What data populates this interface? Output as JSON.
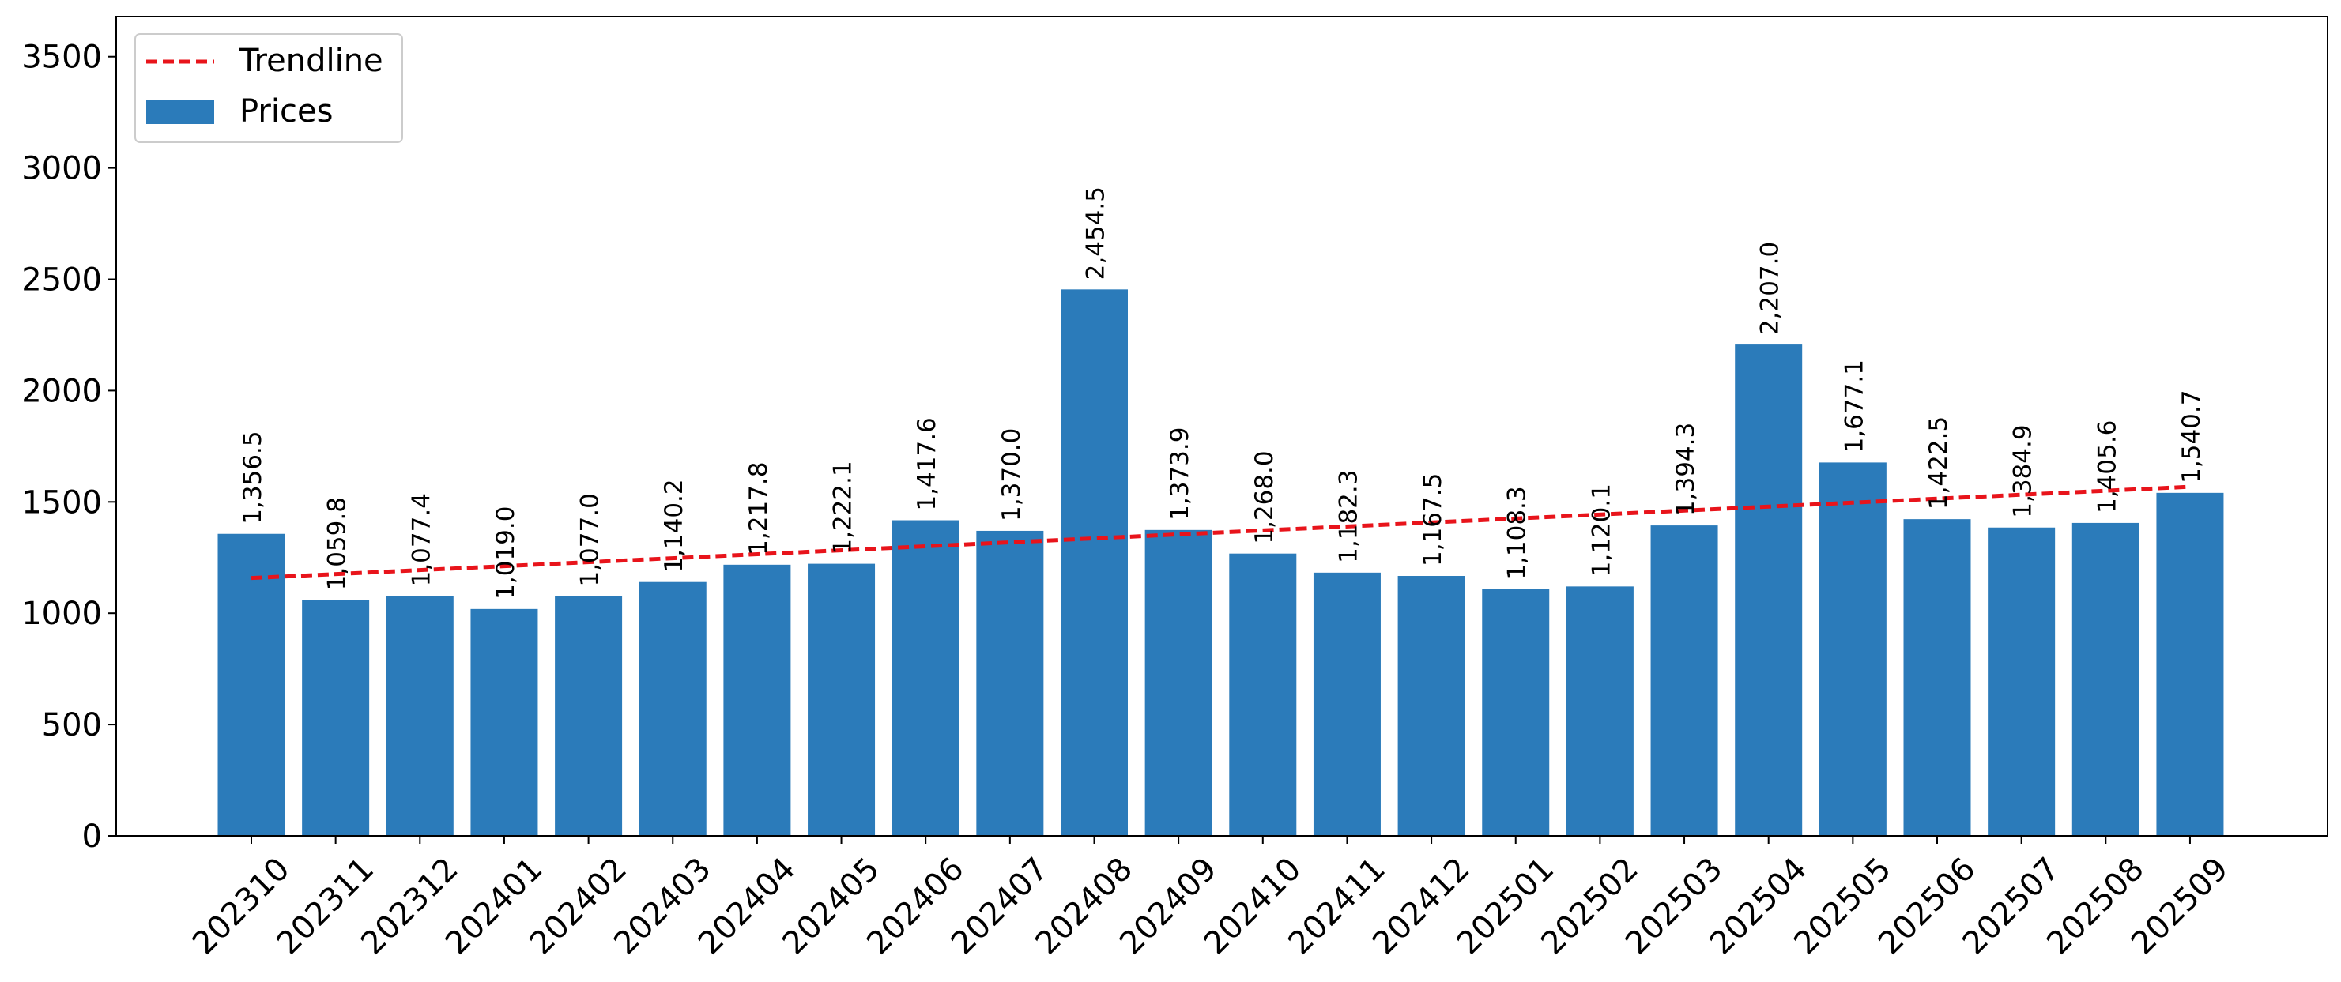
{
  "chart_data": {
    "type": "bar",
    "categories": [
      "202310",
      "202311",
      "202312",
      "202401",
      "202402",
      "202403",
      "202404",
      "202405",
      "202406",
      "202407",
      "202408",
      "202409",
      "202410",
      "202411",
      "202412",
      "202501",
      "202502",
      "202503",
      "202504",
      "202505",
      "202506",
      "202507",
      "202508",
      "202509"
    ],
    "series": [
      {
        "name": "Prices",
        "values": [
          1356.5,
          1059.8,
          1077.4,
          1019.0,
          1077.0,
          1140.2,
          1217.8,
          1222.1,
          1417.6,
          1370.0,
          2454.5,
          1373.9,
          1268.0,
          1182.3,
          1167.5,
          1108.3,
          1120.1,
          1394.3,
          2207.0,
          1677.1,
          1422.5,
          1384.9,
          1405.6,
          1540.7
        ],
        "labels": [
          "1,356.5",
          "1,059.8",
          "1,077.4",
          "1,019.0",
          "1,077.0",
          "1,140.2",
          "1,217.8",
          "1,222.1",
          "1,417.6",
          "1,370.0",
          "2,454.5",
          "1,373.9",
          "1,268.0",
          "1,182.3",
          "1,167.5",
          "1,108.3",
          "1,120.1",
          "1,394.3",
          "2,207.0",
          "1,677.1",
          "1,422.5",
          "1,384.9",
          "1,405.6",
          "1,540.7"
        ],
        "color": "#2b7bba"
      }
    ],
    "trendline": {
      "name": "Trendline",
      "start": 1158,
      "end": 1568,
      "color": "#e8141b"
    },
    "ylim": [
      0,
      3680
    ],
    "yticks": [
      0,
      500,
      1000,
      1500,
      2000,
      2500,
      3000,
      3500
    ],
    "title": "",
    "xlabel": "",
    "ylabel": "",
    "grid": false,
    "legend_position": "upper left"
  }
}
